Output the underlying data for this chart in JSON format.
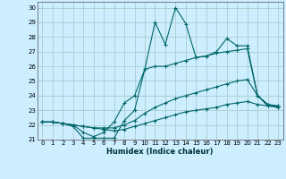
{
  "xlabel": "Humidex (Indice chaleur)",
  "bg_color": "#cceeff",
  "grid_color": "#aacccc",
  "line_color": "#006666",
  "xlim": [
    -0.5,
    23.5
  ],
  "ylim": [
    21,
    30.4
  ],
  "xticks": [
    0,
    1,
    2,
    3,
    4,
    5,
    6,
    7,
    8,
    9,
    10,
    11,
    12,
    13,
    14,
    15,
    16,
    17,
    18,
    19,
    20,
    21,
    22,
    23
  ],
  "yticks": [
    21,
    22,
    23,
    24,
    25,
    26,
    27,
    28,
    29,
    30
  ],
  "series": [
    {
      "x": [
        0,
        1,
        2,
        3,
        4,
        5,
        6,
        7,
        8,
        9,
        10,
        11,
        12,
        13,
        14,
        15,
        16,
        17,
        18,
        19,
        20,
        21,
        22,
        23
      ],
      "y": [
        22.2,
        22.2,
        22.1,
        21.9,
        21.1,
        21.1,
        21.1,
        21.1,
        22.3,
        23.0,
        25.8,
        29.0,
        27.5,
        30.0,
        28.9,
        26.6,
        26.7,
        27.0,
        27.9,
        27.4,
        27.4,
        24.0,
        23.3,
        23.3
      ]
    },
    {
      "x": [
        0,
        1,
        2,
        3,
        4,
        5,
        6,
        7,
        8,
        9,
        10,
        11,
        12,
        13,
        14,
        15,
        16,
        17,
        18,
        19,
        20,
        21,
        22,
        23
      ],
      "y": [
        22.2,
        22.2,
        22.1,
        22.0,
        21.5,
        21.2,
        21.5,
        22.2,
        23.5,
        24.0,
        25.8,
        26.0,
        26.0,
        26.2,
        26.4,
        26.6,
        26.7,
        26.9,
        27.0,
        27.1,
        27.2,
        24.0,
        23.4,
        23.3
      ]
    },
    {
      "x": [
        0,
        1,
        2,
        3,
        4,
        5,
        6,
        7,
        8,
        9,
        10,
        11,
        12,
        13,
        14,
        15,
        16,
        17,
        18,
        19,
        20,
        21,
        22,
        23
      ],
      "y": [
        22.2,
        22.2,
        22.1,
        22.0,
        21.9,
        21.8,
        21.8,
        21.8,
        22.0,
        22.3,
        22.8,
        23.2,
        23.5,
        23.8,
        24.0,
        24.2,
        24.4,
        24.6,
        24.8,
        25.0,
        25.1,
        24.0,
        23.4,
        23.2
      ]
    },
    {
      "x": [
        0,
        1,
        2,
        3,
        4,
        5,
        6,
        7,
        8,
        9,
        10,
        11,
        12,
        13,
        14,
        15,
        16,
        17,
        18,
        19,
        20,
        21,
        22,
        23
      ],
      "y": [
        22.2,
        22.2,
        22.1,
        22.0,
        21.9,
        21.8,
        21.7,
        21.6,
        21.7,
        21.9,
        22.1,
        22.3,
        22.5,
        22.7,
        22.9,
        23.0,
        23.1,
        23.2,
        23.4,
        23.5,
        23.6,
        23.4,
        23.3,
        23.2
      ]
    }
  ]
}
